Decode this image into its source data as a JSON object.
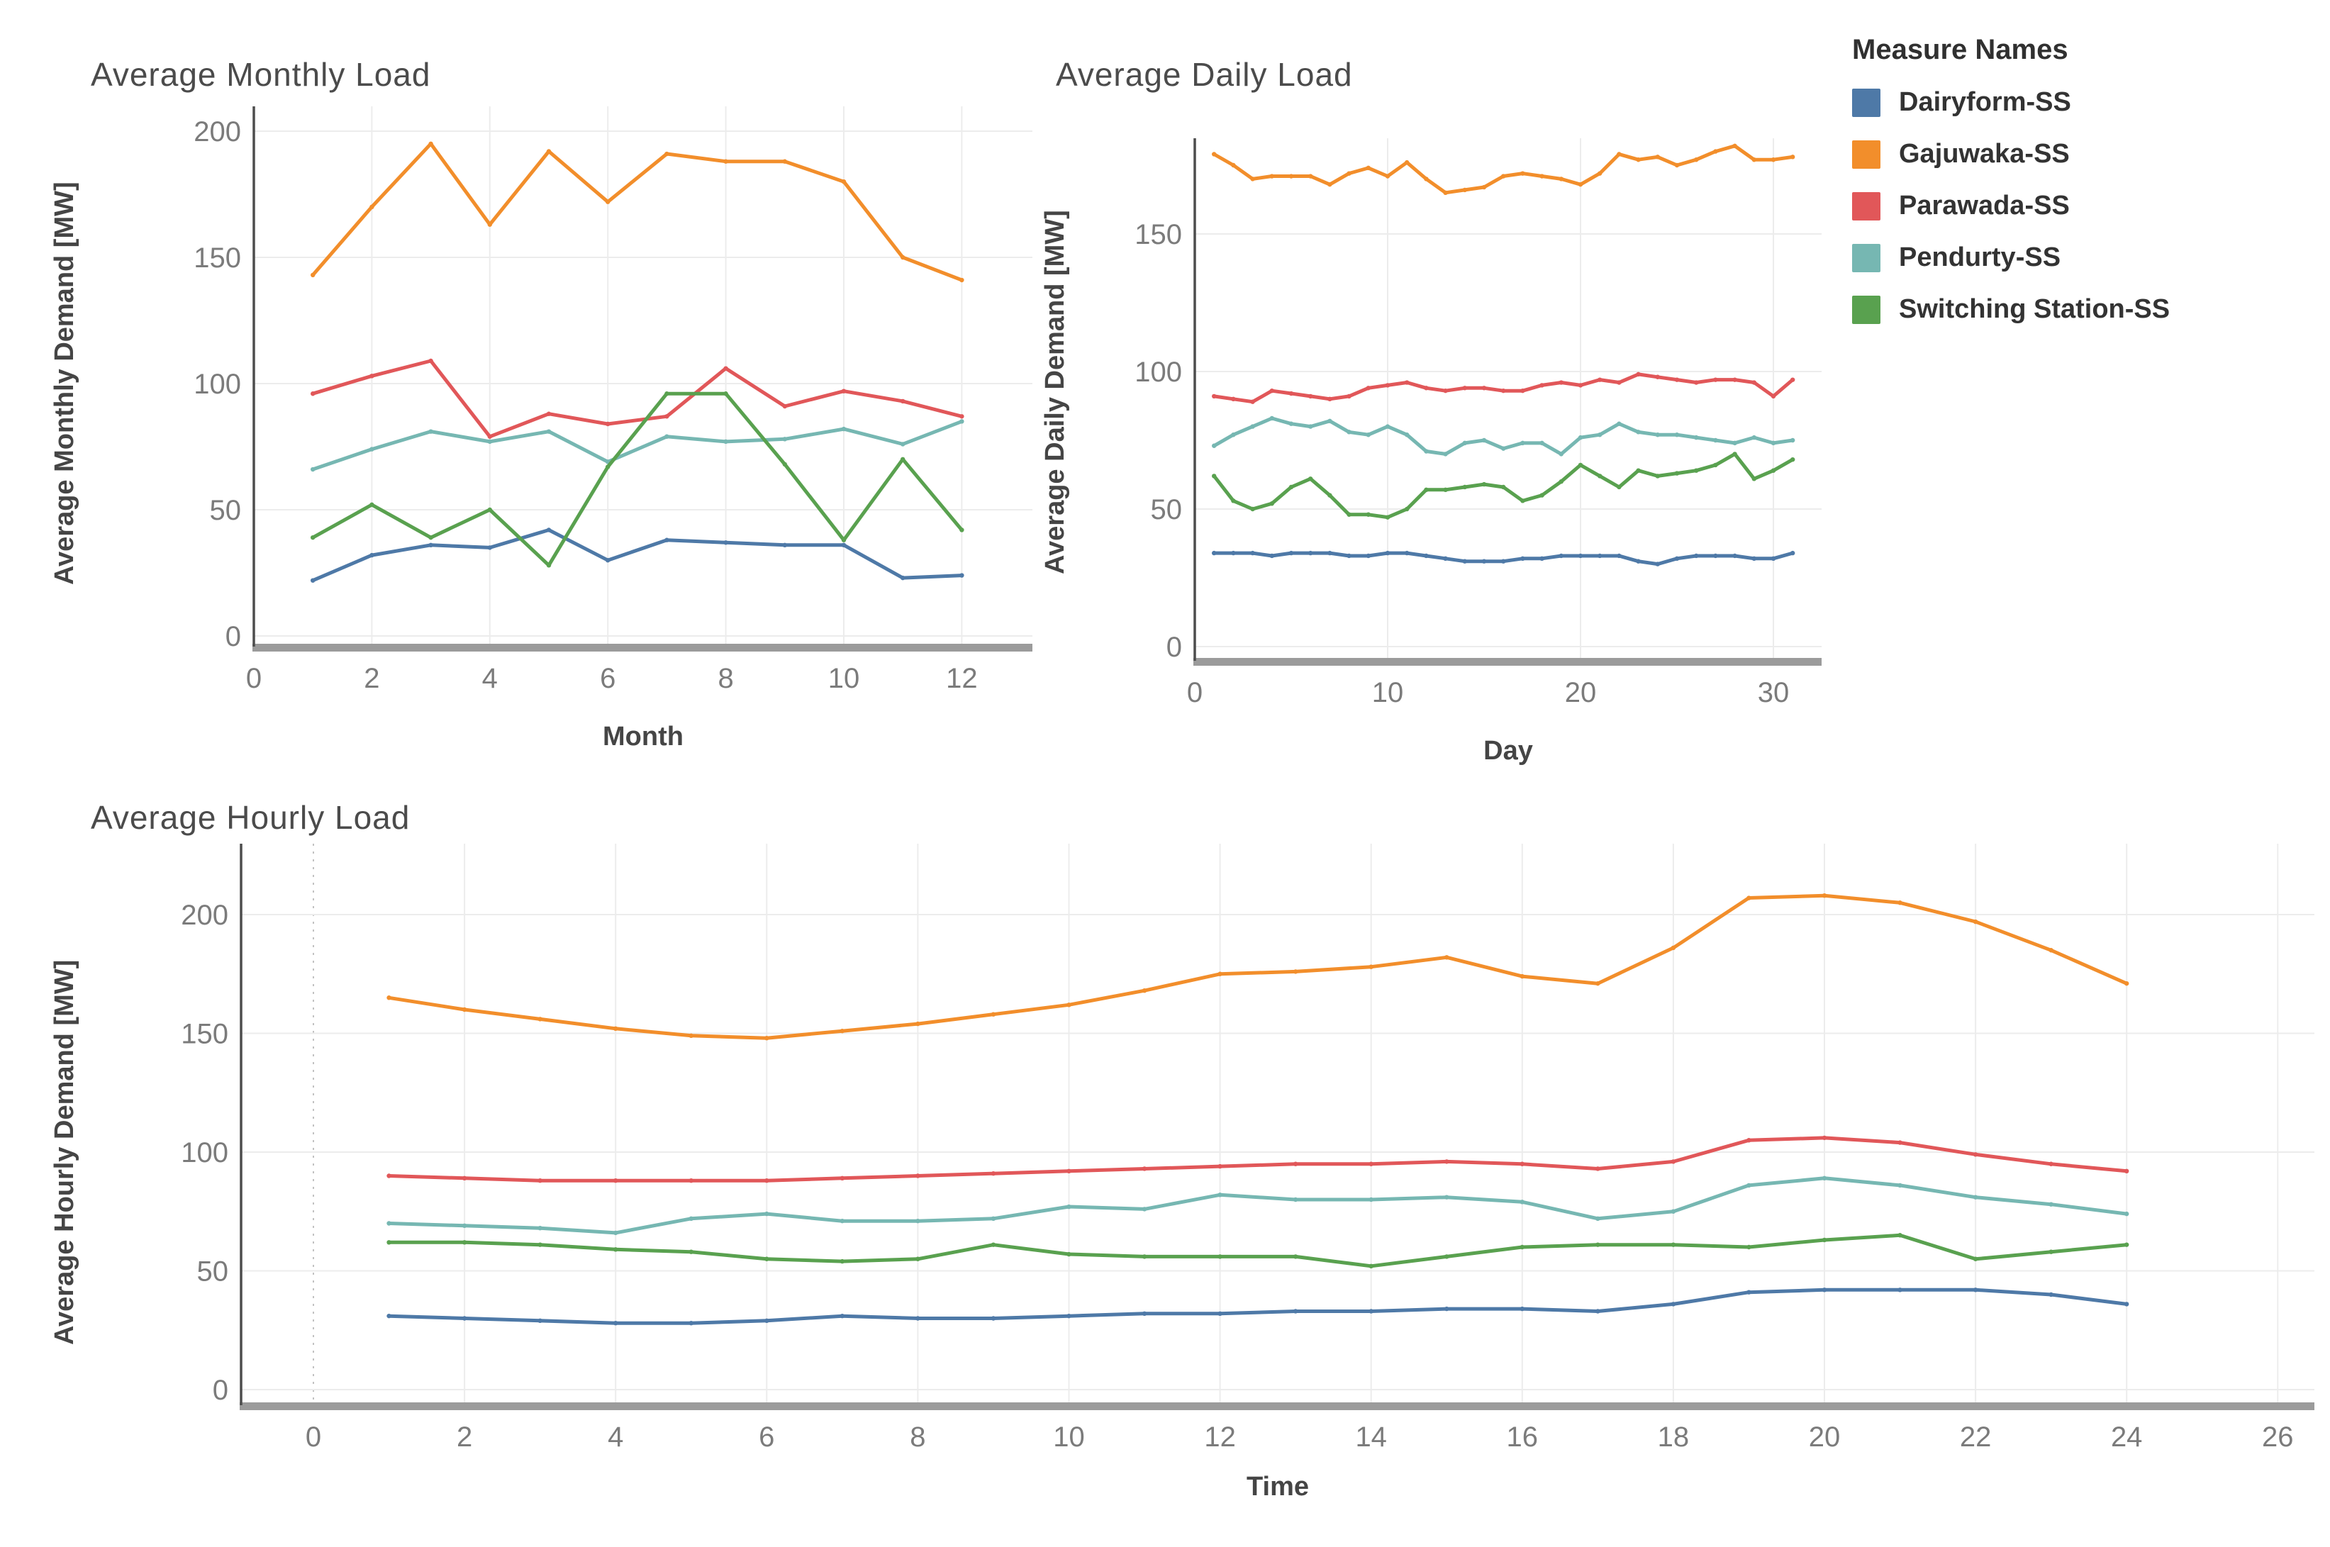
{
  "page": {
    "background": "#ffffff"
  },
  "legend": {
    "title": "Measure Names",
    "items": [
      {
        "label": "Dairyform-SS",
        "color": "#4e79a7"
      },
      {
        "label": "Gajuwaka-SS",
        "color": "#f28e2b"
      },
      {
        "label": "Parawada-SS",
        "color": "#e15759"
      },
      {
        "label": "Pendurty-SS",
        "color": "#76b7b2"
      },
      {
        "label": "Switching Station-SS",
        "color": "#59a14f"
      }
    ]
  },
  "chart_data": [
    {
      "id": "monthly",
      "type": "line",
      "title": "Average Monthly Load",
      "xlabel": "Month",
      "ylabel": "Average Monthly Demand [MW]",
      "x_ticks": [
        0,
        2,
        4,
        6,
        8,
        10,
        12
      ],
      "y_ticks": [
        0,
        50,
        100,
        150,
        200
      ],
      "xlim": [
        0,
        13.2
      ],
      "ylim": [
        0,
        212
      ],
      "grid": true,
      "legend_position": "top-right",
      "x": [
        1,
        2,
        3,
        4,
        5,
        6,
        7,
        8,
        9,
        10,
        11,
        12
      ],
      "series": [
        {
          "name": "Dairyform-SS",
          "color": "#4e79a7",
          "values": [
            22,
            32,
            36,
            35,
            42,
            30,
            38,
            37,
            36,
            36,
            23,
            24
          ]
        },
        {
          "name": "Gajuwaka-SS",
          "color": "#f28e2b",
          "values": [
            143,
            170,
            195,
            163,
            192,
            172,
            191,
            188,
            188,
            180,
            150,
            141
          ]
        },
        {
          "name": "Parawada-SS",
          "color": "#e15759",
          "values": [
            96,
            103,
            109,
            79,
            88,
            84,
            87,
            106,
            91,
            97,
            93,
            87
          ]
        },
        {
          "name": "Pendurty-SS",
          "color": "#76b7b2",
          "values": [
            66,
            74,
            81,
            77,
            81,
            69,
            79,
            77,
            78,
            82,
            76,
            85
          ]
        },
        {
          "name": "Switching Station-SS",
          "color": "#59a14f",
          "values": [
            39,
            52,
            39,
            50,
            28,
            67,
            96,
            96,
            68,
            38,
            70,
            42
          ]
        }
      ]
    },
    {
      "id": "daily",
      "type": "line",
      "title": "Average Daily Load",
      "xlabel": "Day",
      "ylabel": "Average Daily Demand [MW]",
      "x_ticks": [
        0,
        10,
        20,
        30
      ],
      "y_ticks": [
        0,
        50,
        100,
        150
      ],
      "xlim": [
        0,
        32.5
      ],
      "ylim": [
        0,
        184
      ],
      "grid": true,
      "x": [
        1,
        2,
        3,
        4,
        5,
        6,
        7,
        8,
        9,
        10,
        11,
        12,
        13,
        14,
        15,
        16,
        17,
        18,
        19,
        20,
        21,
        22,
        23,
        24,
        25,
        26,
        27,
        28,
        29,
        30,
        31
      ],
      "series": [
        {
          "name": "Dairyform-SS",
          "color": "#4e79a7",
          "values": [
            34,
            34,
            34,
            33,
            34,
            34,
            34,
            33,
            33,
            34,
            34,
            33,
            32,
            31,
            31,
            31,
            32,
            32,
            33,
            33,
            33,
            33,
            31,
            30,
            32,
            33,
            33,
            33,
            32,
            32,
            34
          ]
        },
        {
          "name": "Gajuwaka-SS",
          "color": "#f28e2b",
          "values": [
            179,
            175,
            170,
            171,
            171,
            171,
            168,
            172,
            174,
            171,
            176,
            170,
            165,
            166,
            167,
            171,
            172,
            171,
            170,
            168,
            172,
            179,
            177,
            178,
            175,
            177,
            180,
            182,
            177,
            177,
            178
          ]
        },
        {
          "name": "Parawada-SS",
          "color": "#e15759",
          "values": [
            91,
            90,
            89,
            93,
            92,
            91,
            90,
            91,
            94,
            95,
            96,
            94,
            93,
            94,
            94,
            93,
            93,
            95,
            96,
            95,
            97,
            96,
            99,
            98,
            97,
            96,
            97,
            97,
            96,
            91,
            97
          ]
        },
        {
          "name": "Pendurty-SS",
          "color": "#76b7b2",
          "values": [
            73,
            77,
            80,
            83,
            81,
            80,
            82,
            78,
            77,
            80,
            77,
            71,
            70,
            74,
            75,
            72,
            74,
            74,
            70,
            76,
            77,
            81,
            78,
            77,
            77,
            76,
            75,
            74,
            76,
            74,
            75
          ]
        },
        {
          "name": "Switching Station-SS",
          "color": "#59a14f",
          "values": [
            62,
            53,
            50,
            52,
            58,
            61,
            55,
            48,
            48,
            47,
            50,
            57,
            57,
            58,
            59,
            58,
            53,
            55,
            60,
            66,
            62,
            58,
            64,
            62,
            63,
            64,
            66,
            70,
            61,
            64,
            68
          ]
        }
      ]
    },
    {
      "id": "hourly",
      "type": "line",
      "title": "Average Hourly Load",
      "xlabel": "Time",
      "ylabel": "Average Hourly Demand [MW]",
      "x_ticks": [
        0,
        2,
        4,
        6,
        8,
        10,
        12,
        14,
        16,
        18,
        20,
        22,
        24,
        26
      ],
      "y_ticks": [
        0,
        50,
        100,
        150,
        200
      ],
      "xlim": [
        0,
        26.5
      ],
      "ylim": [
        0,
        235
      ],
      "grid": true,
      "x": [
        1,
        2,
        3,
        4,
        5,
        6,
        7,
        8,
        9,
        10,
        11,
        12,
        13,
        14,
        15,
        16,
        17,
        18,
        19,
        20,
        21,
        22,
        23,
        24
      ],
      "series": [
        {
          "name": "Dairyform-SS",
          "color": "#4e79a7",
          "values": [
            31,
            30,
            29,
            28,
            28,
            29,
            31,
            30,
            30,
            31,
            32,
            32,
            33,
            33,
            34,
            34,
            33,
            36,
            41,
            42,
            42,
            42,
            40,
            36
          ]
        },
        {
          "name": "Gajuwaka-SS",
          "color": "#f28e2b",
          "values": [
            165,
            160,
            156,
            152,
            149,
            148,
            151,
            154,
            158,
            162,
            168,
            175,
            176,
            178,
            182,
            174,
            171,
            186,
            207,
            208,
            205,
            197,
            185,
            171
          ]
        },
        {
          "name": "Parawada-SS",
          "color": "#e15759",
          "values": [
            90,
            89,
            88,
            88,
            88,
            88,
            89,
            90,
            91,
            92,
            93,
            94,
            95,
            95,
            96,
            95,
            93,
            96,
            105,
            106,
            104,
            99,
            95,
            92
          ]
        },
        {
          "name": "Pendurty-SS",
          "color": "#76b7b2",
          "values": [
            70,
            69,
            68,
            66,
            72,
            74,
            71,
            71,
            72,
            77,
            76,
            82,
            80,
            80,
            81,
            79,
            72,
            75,
            86,
            89,
            86,
            81,
            78,
            74
          ]
        },
        {
          "name": "Switching Station-SS",
          "color": "#59a14f",
          "values": [
            62,
            62,
            61,
            59,
            58,
            55,
            54,
            55,
            61,
            57,
            56,
            56,
            56,
            52,
            56,
            60,
            61,
            61,
            60,
            63,
            65,
            55,
            58,
            61
          ]
        }
      ]
    }
  ]
}
